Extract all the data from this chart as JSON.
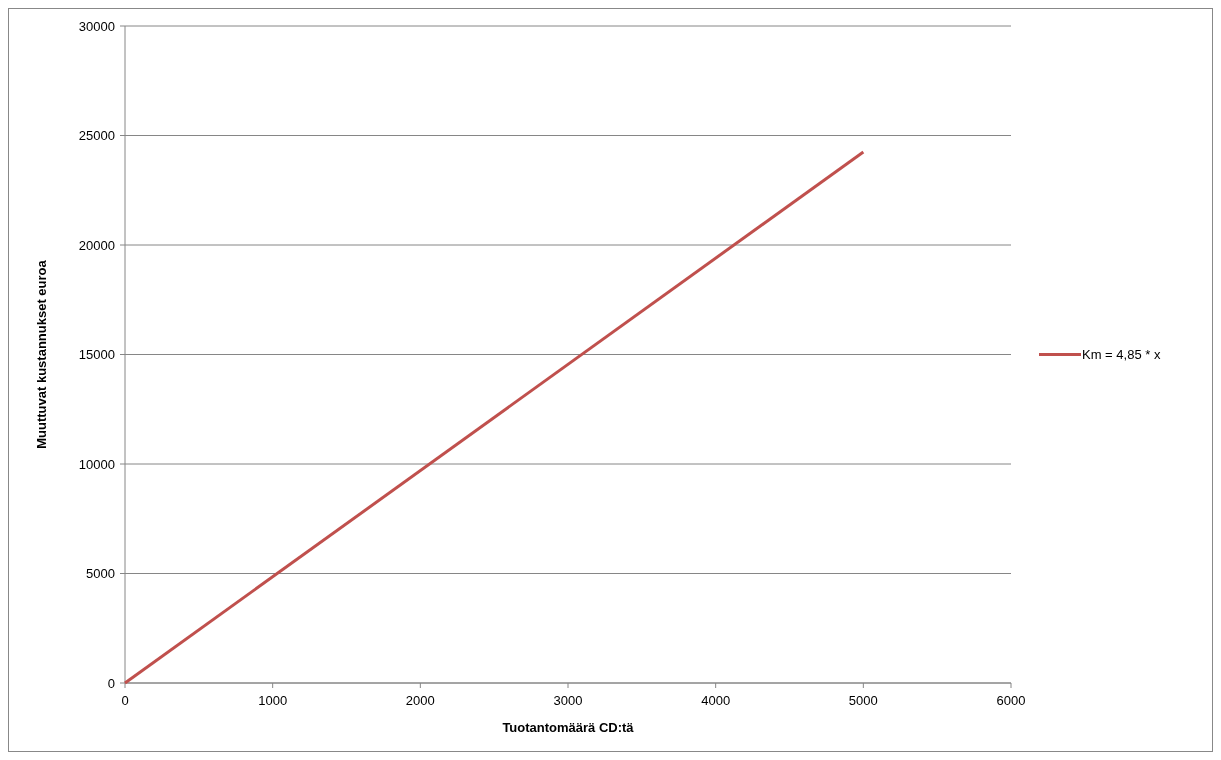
{
  "chart_data": {
    "type": "line",
    "xlabel": "Tuotantomäärä CD:tä",
    "ylabel": "Muuttuvat kustannukset euroa",
    "x": [
      0,
      5000
    ],
    "series": [
      {
        "name": "Km = 4,85 * x",
        "color": "#c0504d",
        "values": [
          0,
          24250
        ]
      }
    ],
    "xlim": [
      0,
      6000
    ],
    "xticks": [
      0,
      1000,
      2000,
      3000,
      4000,
      5000,
      6000
    ],
    "ylim": [
      0,
      30000
    ],
    "yticks": [
      0,
      5000,
      10000,
      15000,
      20000,
      25000,
      30000
    ],
    "grid": "y",
    "legend": "right",
    "marker": "none",
    "line_style": "solid"
  }
}
